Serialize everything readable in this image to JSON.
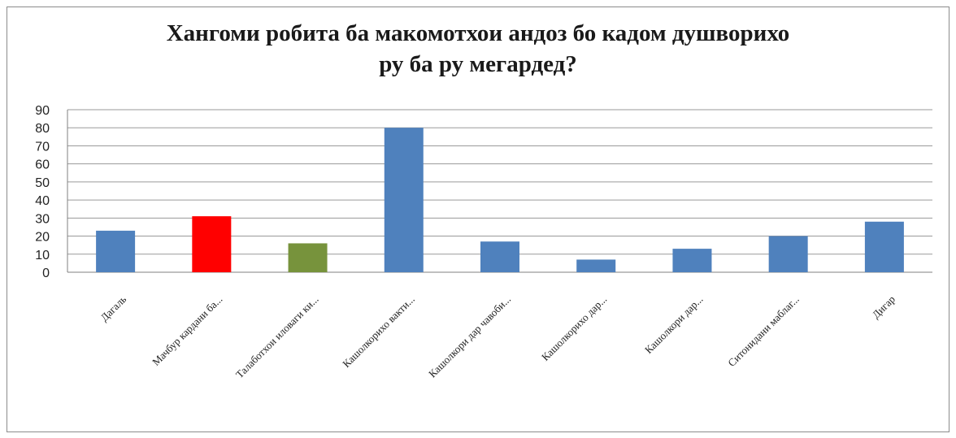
{
  "chart_data": {
    "type": "bar",
    "title_lines": [
      "Хангоми робита  ба макомотхои андоз бо кадом душворихо",
      "ру ба ру мегардед?"
    ],
    "categories": [
      "Дагаль",
      "Мачбур кардани ба...",
      "Талаботхои иловаги ки...",
      "Кашолкорихо вакти...",
      "Кашолкори дар чавоби...",
      "Кашолкорихо дар...",
      "Кашолкори дар...",
      "Ситонидани маблаг...",
      "Дигар"
    ],
    "values": [
      23,
      31,
      16,
      80,
      17,
      7,
      13,
      20,
      28
    ],
    "colors": [
      "#4f81bd",
      "#ff0000",
      "#77933c",
      "#4f81bd",
      "#4f81bd",
      "#4f81bd",
      "#4f81bd",
      "#4f81bd",
      "#4f81bd"
    ],
    "ylim": [
      0,
      90
    ],
    "yticks": [
      0,
      10,
      20,
      30,
      40,
      50,
      60,
      70,
      80,
      90
    ],
    "grid": true,
    "legend": "none"
  }
}
